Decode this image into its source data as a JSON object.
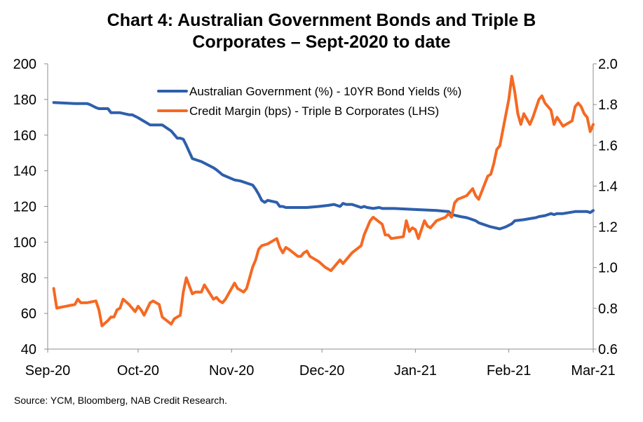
{
  "chart_data": {
    "type": "line",
    "title_line1": "Chart 4: Australian Government Bonds and Triple B",
    "title_line2": "Corporates – Sept-2020 to date",
    "x_tick_labels": [
      "Sep-20",
      "Oct-20",
      "Nov-20",
      "Dec-20",
      "Jan-21",
      "Feb-21",
      "Mar-21"
    ],
    "x_range": [
      "2020-09-01",
      "2021-03-01"
    ],
    "y_left": {
      "ylim": [
        40,
        200
      ],
      "ticks": [
        "40",
        "60",
        "80",
        "100",
        "120",
        "140",
        "160",
        "180",
        "200"
      ]
    },
    "y_right": {
      "ylim": [
        0.6,
        2.0
      ],
      "ticks": [
        "0.6",
        "0.8",
        "1.0",
        "1.2",
        "1.4",
        "1.6",
        "1.8",
        "2.0"
      ]
    },
    "grid": false,
    "legend_position": "top-center",
    "colors": {
      "bond": "#2e5fac",
      "credit": "#f56922"
    },
    "series": [
      {
        "name": "Australian Government (%) - 10YR Bond Yields (%)",
        "axis": "right",
        "color": "#2e5fac",
        "x": [
          "2020-09-03",
          "2020-09-10",
          "2020-09-14",
          "2020-09-15",
          "2020-09-17",
          "2020-09-18",
          "2020-09-21",
          "2020-09-22",
          "2020-09-23",
          "2020-09-25",
          "2020-09-28",
          "2020-09-29",
          "2020-10-01",
          "2020-10-05",
          "2020-10-06",
          "2020-10-07",
          "2020-10-09",
          "2020-10-12",
          "2020-10-14",
          "2020-10-15",
          "2020-10-16",
          "2020-10-17",
          "2020-10-19",
          "2020-10-21",
          "2020-10-22",
          "2020-10-26",
          "2020-10-27",
          "2020-10-29",
          "2020-11-02",
          "2020-11-04",
          "2020-11-06",
          "2020-11-08",
          "2020-11-09",
          "2020-11-10",
          "2020-11-11",
          "2020-11-12",
          "2020-11-13",
          "2020-11-16",
          "2020-11-17",
          "2020-11-18",
          "2020-11-19",
          "2020-11-20",
          "2020-11-23",
          "2020-11-26",
          "2020-11-30",
          "2020-12-03",
          "2020-12-05",
          "2020-12-07",
          "2020-12-08",
          "2020-12-09",
          "2020-12-11",
          "2020-12-14",
          "2020-12-15",
          "2020-12-16",
          "2020-12-18",
          "2020-12-20",
          "2020-12-21",
          "2020-12-25",
          "2021-01-01",
          "2021-01-08",
          "2021-01-12",
          "2021-01-13",
          "2021-01-16",
          "2021-01-18",
          "2021-01-19",
          "2021-01-21",
          "2021-01-22",
          "2021-01-26",
          "2021-01-29",
          "2021-01-31",
          "2021-02-02",
          "2021-02-03",
          "2021-02-06",
          "2021-02-08",
          "2021-02-10",
          "2021-02-11",
          "2021-02-13",
          "2021-02-15",
          "2021-02-16",
          "2021-02-17",
          "2021-02-19",
          "2021-02-23",
          "2021-02-25",
          "2021-02-27",
          "2021-02-28",
          "2021-03-01"
        ],
        "values": [
          1.81,
          1.805,
          1.805,
          1.8,
          1.785,
          1.78,
          1.78,
          1.76,
          1.76,
          1.76,
          1.75,
          1.75,
          1.735,
          1.7,
          1.7,
          1.7,
          1.7,
          1.67,
          1.635,
          1.635,
          1.63,
          1.6,
          1.535,
          1.525,
          1.52,
          1.49,
          1.48,
          1.455,
          1.43,
          1.425,
          1.415,
          1.405,
          1.385,
          1.36,
          1.33,
          1.32,
          1.33,
          1.32,
          1.3,
          1.3,
          1.295,
          1.295,
          1.295,
          1.295,
          1.3,
          1.305,
          1.31,
          1.3,
          1.315,
          1.31,
          1.31,
          1.295,
          1.3,
          1.295,
          1.29,
          1.295,
          1.29,
          1.29,
          1.285,
          1.28,
          1.275,
          1.26,
          1.25,
          1.245,
          1.24,
          1.23,
          1.22,
          1.2,
          1.19,
          1.2,
          1.215,
          1.23,
          1.235,
          1.24,
          1.245,
          1.25,
          1.255,
          1.265,
          1.26,
          1.265,
          1.265,
          1.275,
          1.275,
          1.275,
          1.27,
          1.28
        ]
      },
      {
        "name": "Credit Margin (bps) - Triple B Corporates (LHS)",
        "axis": "left",
        "color": "#f56922",
        "x": [
          "2020-09-03",
          "2020-09-04",
          "2020-09-07",
          "2020-09-10",
          "2020-09-11",
          "2020-09-12",
          "2020-09-14",
          "2020-09-17",
          "2020-09-18",
          "2020-09-19",
          "2020-09-21",
          "2020-09-22",
          "2020-09-23",
          "2020-09-24",
          "2020-09-25",
          "2020-09-26",
          "2020-09-28",
          "2020-09-29",
          "2020-09-30",
          "2020-10-01",
          "2020-10-02",
          "2020-10-03",
          "2020-10-05",
          "2020-10-06",
          "2020-10-07",
          "2020-10-08",
          "2020-10-09",
          "2020-10-12",
          "2020-10-13",
          "2020-10-14",
          "2020-10-15",
          "2020-10-16",
          "2020-10-17",
          "2020-10-19",
          "2020-10-20",
          "2020-10-21",
          "2020-10-22",
          "2020-10-23",
          "2020-10-26",
          "2020-10-27",
          "2020-10-28",
          "2020-10-29",
          "2020-10-30",
          "2020-11-02",
          "2020-11-03",
          "2020-11-04",
          "2020-11-05",
          "2020-11-06",
          "2020-11-08",
          "2020-11-09",
          "2020-11-10",
          "2020-11-11",
          "2020-11-13",
          "2020-11-16",
          "2020-11-17",
          "2020-11-18",
          "2020-11-19",
          "2020-11-20",
          "2020-11-23",
          "2020-11-24",
          "2020-11-25",
          "2020-11-26",
          "2020-11-27",
          "2020-11-30",
          "2020-12-02",
          "2020-12-04",
          "2020-12-07",
          "2020-12-08",
          "2020-12-10",
          "2020-12-11",
          "2020-12-14",
          "2020-12-15",
          "2020-12-16",
          "2020-12-17",
          "2020-12-18",
          "2020-12-21",
          "2020-12-22",
          "2020-12-23",
          "2020-12-24",
          "2020-12-28",
          "2020-12-29",
          "2020-12-30",
          "2020-12-31",
          "2021-01-01",
          "2021-01-02",
          "2021-01-04",
          "2021-01-05",
          "2021-01-06",
          "2021-01-07",
          "2021-01-08",
          "2021-01-11",
          "2021-01-12",
          "2021-01-13",
          "2021-01-14",
          "2021-01-15",
          "2021-01-18",
          "2021-01-19",
          "2021-01-20",
          "2021-01-21",
          "2021-01-22",
          "2021-01-25",
          "2021-01-26",
          "2021-01-27",
          "2021-01-28",
          "2021-01-29",
          "2021-02-01",
          "2021-02-02",
          "2021-02-03",
          "2021-02-04",
          "2021-02-05",
          "2021-02-06",
          "2021-02-08",
          "2021-02-09",
          "2021-02-11",
          "2021-02-12",
          "2021-02-13",
          "2021-02-15",
          "2021-02-16",
          "2021-02-17",
          "2021-02-19",
          "2021-02-22",
          "2021-02-23",
          "2021-02-24",
          "2021-02-25",
          "2021-02-26",
          "2021-02-27",
          "2021-02-28",
          "2021-03-01"
        ],
        "values": [
          74,
          63,
          64,
          65,
          68,
          66,
          66,
          67,
          62,
          53,
          56,
          58,
          58,
          62,
          63,
          68,
          65,
          63,
          61,
          64,
          62,
          59,
          66,
          67,
          66,
          65,
          58,
          54,
          57,
          58,
          59,
          72,
          80,
          71,
          72,
          72,
          72,
          76,
          68,
          69,
          67,
          66,
          68,
          77,
          74,
          73,
          72,
          74,
          86,
          90,
          96,
          98,
          99,
          102,
          97,
          94,
          97,
          96,
          92,
          92,
          94,
          95,
          92,
          89,
          86,
          84,
          90,
          88,
          92,
          94,
          98,
          104,
          108,
          112,
          114,
          110,
          104,
          104,
          102,
          103,
          112,
          106,
          108,
          107,
          102,
          112,
          109,
          108,
          110,
          112,
          114,
          116,
          114,
          122,
          124,
          126,
          128,
          130,
          126,
          124,
          137,
          138,
          144,
          152,
          154,
          180,
          193,
          184,
          172,
          166,
          172,
          166,
          170,
          180,
          182,
          178,
          174,
          166,
          170,
          165,
          168,
          176,
          178,
          176,
          172,
          170,
          162,
          166
        ]
      }
    ]
  },
  "source": "Source: YCM, Bloomberg, NAB Credit Research."
}
